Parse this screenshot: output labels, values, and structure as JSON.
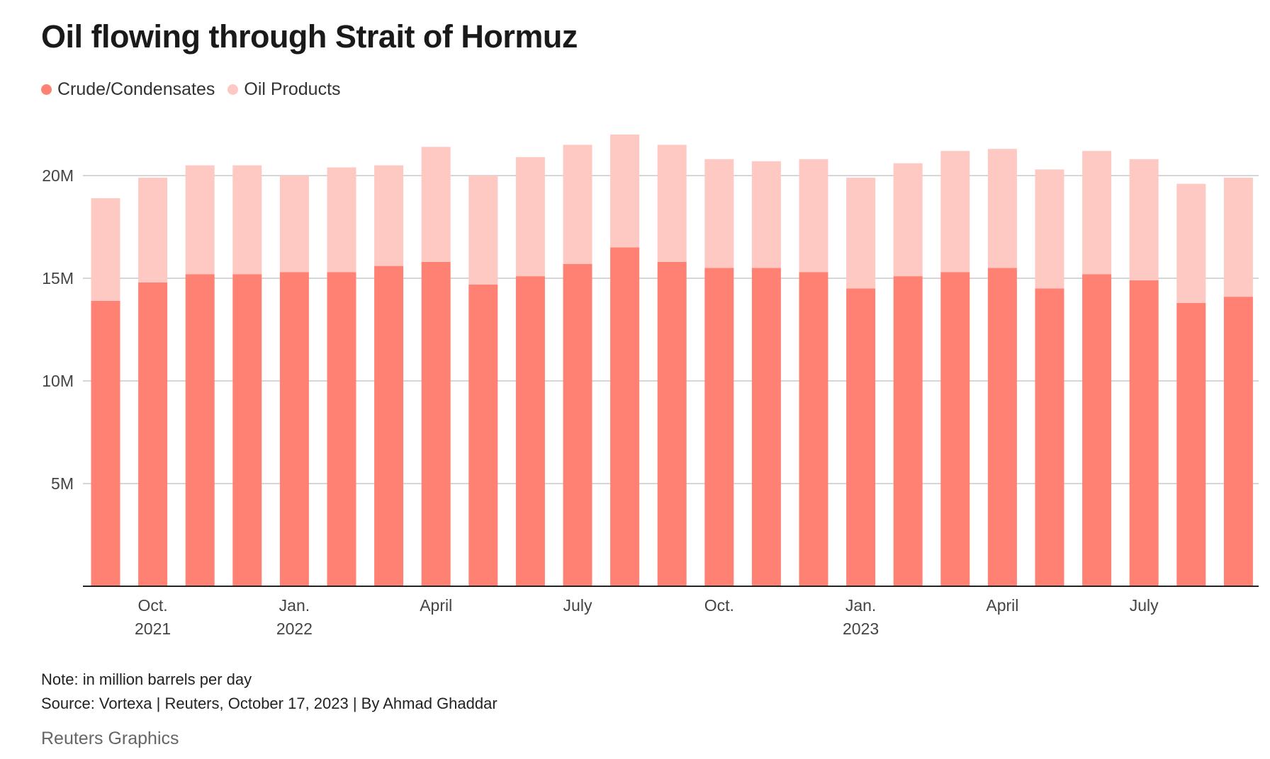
{
  "title": "Oil flowing through Strait of Hormuz",
  "legend": [
    {
      "label": "Crude/Condensates",
      "color": "#ff8173"
    },
    {
      "label": "Oil Products",
      "color": "#ffc9c3"
    }
  ],
  "note": "Note: in million barrels per day",
  "source": "Source: Vortexa | Reuters, October 17, 2023 | By Ahmad Ghaddar",
  "brand": "Reuters Graphics",
  "chart_data": {
    "type": "bar",
    "stacked": true,
    "ylim": [
      0,
      22.5
    ],
    "grid": true,
    "legend_position": "top-left",
    "y_ticks": [
      {
        "value": 5,
        "label": "5M"
      },
      {
        "value": 10,
        "label": "10M"
      },
      {
        "value": 15,
        "label": "15M"
      },
      {
        "value": 20,
        "label": "20M"
      }
    ],
    "x_ticks": [
      {
        "index": 1,
        "label": "Oct.",
        "sublabel": "2021"
      },
      {
        "index": 4,
        "label": "Jan.",
        "sublabel": "2022"
      },
      {
        "index": 7,
        "label": "April",
        "sublabel": ""
      },
      {
        "index": 10,
        "label": "July",
        "sublabel": ""
      },
      {
        "index": 13,
        "label": "Oct.",
        "sublabel": ""
      },
      {
        "index": 16,
        "label": "Jan.",
        "sublabel": "2023"
      },
      {
        "index": 19,
        "label": "April",
        "sublabel": ""
      },
      {
        "index": 22,
        "label": "July",
        "sublabel": ""
      }
    ],
    "categories": [
      "Sep 2021",
      "Oct 2021",
      "Nov 2021",
      "Dec 2021",
      "Jan 2022",
      "Feb 2022",
      "Mar 2022",
      "Apr 2022",
      "May 2022",
      "Jun 2022",
      "Jul 2022",
      "Aug 2022",
      "Sep 2022",
      "Oct 2022",
      "Nov 2022",
      "Dec 2022",
      "Jan 2023",
      "Feb 2023",
      "Mar 2023",
      "Apr 2023",
      "May 2023",
      "Jun 2023",
      "Jul 2023",
      "Aug 2023",
      "Sep 2023"
    ],
    "series": [
      {
        "name": "Crude/Condensates",
        "color": "#ff8173",
        "values": [
          13.9,
          14.8,
          15.2,
          15.2,
          15.3,
          15.3,
          15.6,
          15.8,
          14.7,
          15.1,
          15.7,
          16.5,
          15.8,
          15.5,
          15.5,
          15.3,
          14.5,
          15.1,
          15.3,
          15.5,
          14.5,
          15.2,
          14.9,
          13.8,
          14.1
        ]
      },
      {
        "name": "Oil Products",
        "color": "#ffc9c3",
        "values": [
          5.0,
          5.1,
          5.3,
          5.3,
          4.7,
          5.1,
          4.9,
          5.6,
          5.3,
          5.8,
          5.8,
          5.5,
          5.7,
          5.3,
          5.2,
          5.5,
          5.4,
          5.5,
          5.9,
          5.8,
          5.8,
          6.0,
          5.9,
          5.8,
          5.8
        ]
      }
    ]
  }
}
